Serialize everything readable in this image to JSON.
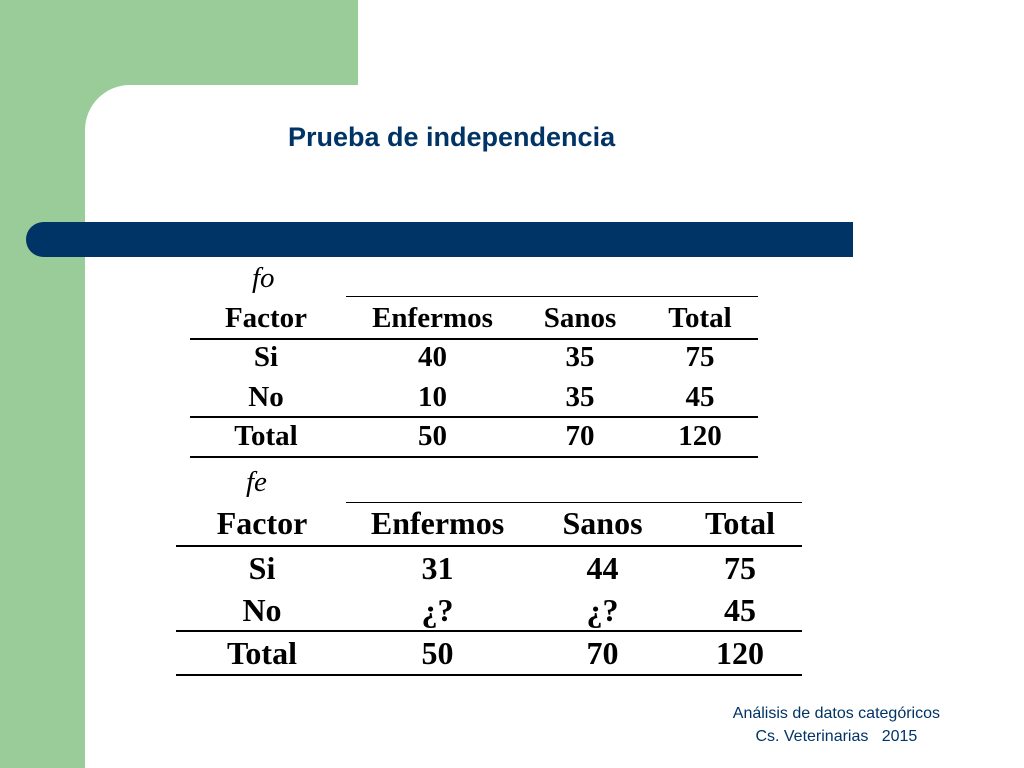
{
  "title": "Prueba de independencia",
  "colors": {
    "accent": "#003366",
    "green": "#99cc99"
  },
  "table_fo": {
    "tag": "fo",
    "header": [
      "Factor",
      "Enfermos",
      "Sanos",
      "Total"
    ],
    "rows": [
      [
        "Si",
        "40",
        "35",
        "75"
      ],
      [
        "No",
        "10",
        "35",
        "45"
      ]
    ],
    "total": [
      "Total",
      "50",
      "70",
      "120"
    ]
  },
  "table_fe": {
    "tag": "fe",
    "header": [
      "Factor",
      "Enfermos",
      "Sanos",
      "Total"
    ],
    "rows": [
      [
        "Si",
        "31",
        "44",
        "75"
      ],
      [
        "No",
        "¿?",
        "¿?",
        "45"
      ]
    ],
    "total": [
      "Total",
      "50",
      "70",
      "120"
    ]
  },
  "footer": {
    "line1": "Análisis de datos categóricos",
    "line2": "Cs. Veterinarias   2015"
  }
}
